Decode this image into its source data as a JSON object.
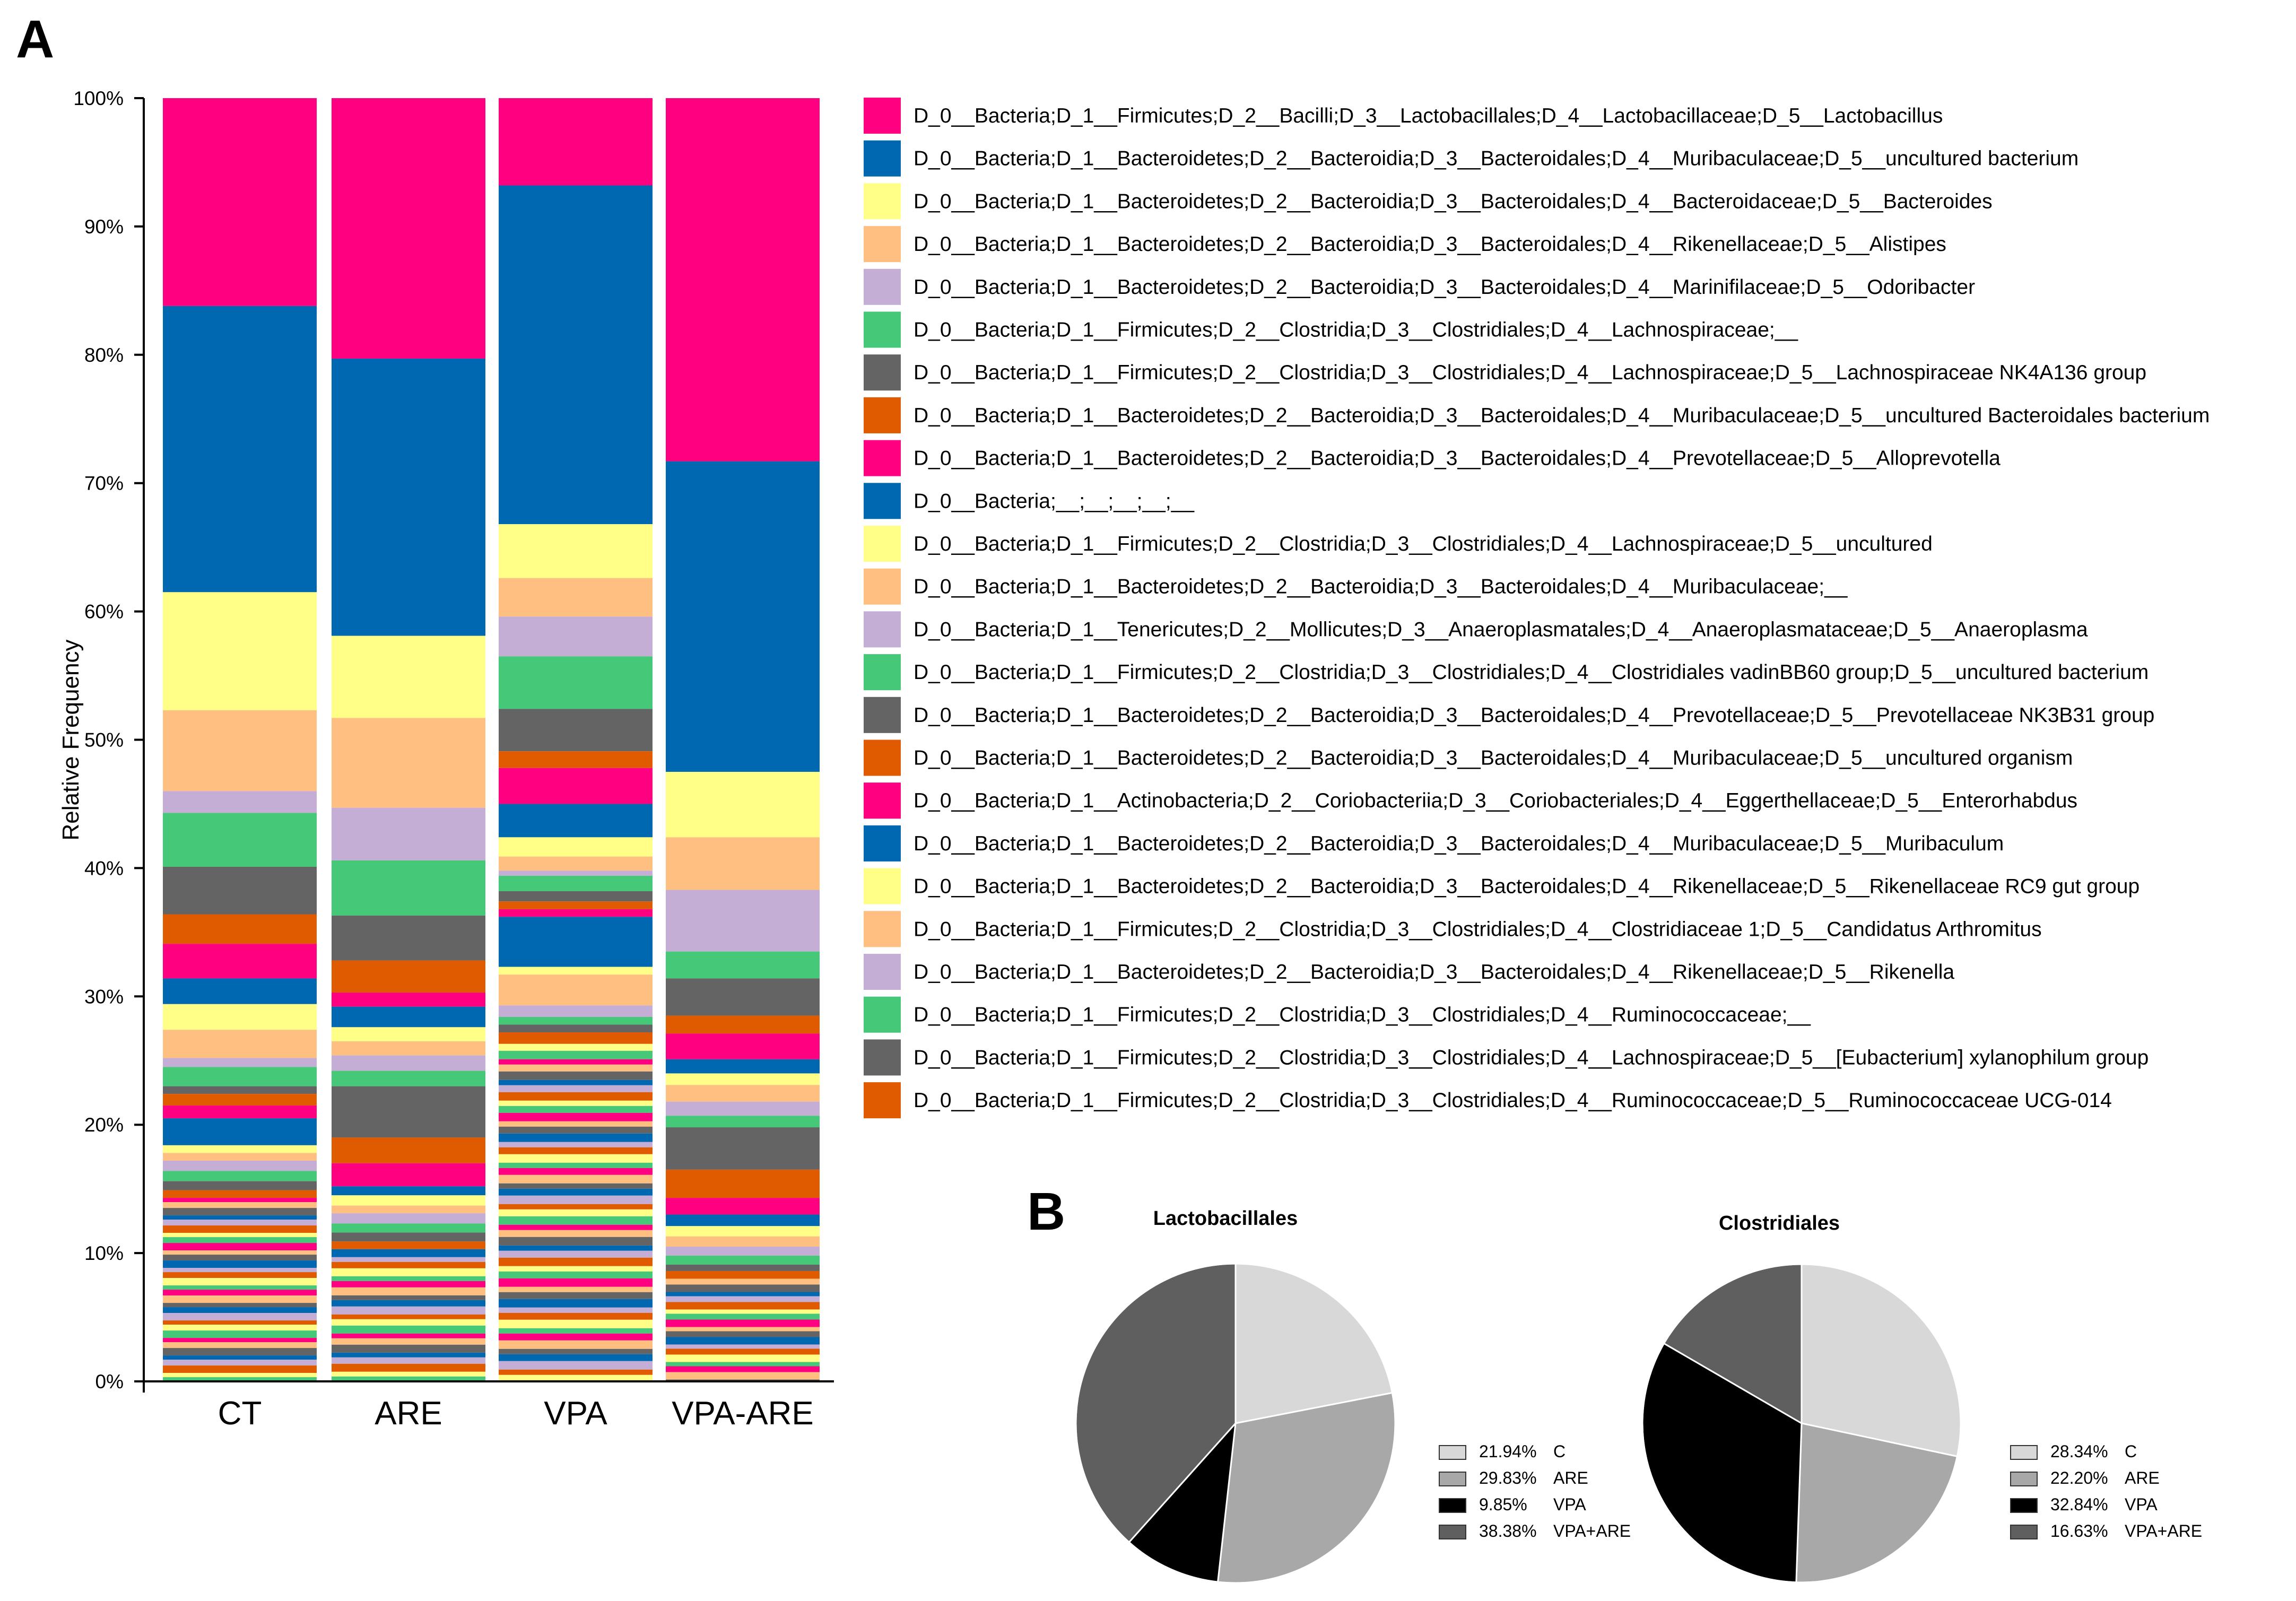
{
  "figure": {
    "panel_a_label": "A",
    "panel_b_label": "B"
  },
  "chart_data": [
    {
      "type": "stacked-bar",
      "ylabel": "Relative Frequency",
      "ylim": [
        0,
        100
      ],
      "ytick_labels": [
        "0%",
        "10%",
        "20%",
        "30%",
        "40%",
        "50%",
        "60%",
        "70%",
        "80%",
        "90%",
        "100%"
      ],
      "categories": [
        "CT",
        "ARE",
        "VPA",
        "VPA-ARE"
      ],
      "series": [
        {
          "name": "D_0__Bacteria;D_1__Firmicutes;D_2__Bacilli;D_3__Lactobacillales;D_4__Lactobacillaceae;D_5__Lactobacillus",
          "color": "#ff0080",
          "values": [
            16.2,
            20.3,
            6.8,
            28.3
          ]
        },
        {
          "name": "D_0__Bacteria;D_1__Bacteroidetes;D_2__Bacteroidia;D_3__Bacteroidales;D_4__Muribaculaceae;D_5__uncultured bacterium",
          "color": "#0068b0",
          "values": [
            22.3,
            21.6,
            26.4,
            24.2
          ]
        },
        {
          "name": "D_0__Bacteria;D_1__Bacteroidetes;D_2__Bacteroidia;D_3__Bacteroidales;D_4__Bacteroidaceae;D_5__Bacteroides",
          "color": "#ffff88",
          "values": [
            9.2,
            6.4,
            4.2,
            5.1
          ]
        },
        {
          "name": "D_0__Bacteria;D_1__Bacteroidetes;D_2__Bacteroidia;D_3__Bacteroidales;D_4__Rikenellaceae;D_5__Alistipes",
          "color": "#ffbf80",
          "values": [
            6.3,
            7.0,
            3.0,
            4.1
          ]
        },
        {
          "name": "D_0__Bacteria;D_1__Bacteroidetes;D_2__Bacteroidia;D_3__Bacteroidales;D_4__Marinifilaceae;D_5__Odoribacter",
          "color": "#c5aed6",
          "values": [
            1.7,
            4.1,
            3.1,
            4.8
          ]
        },
        {
          "name": "D_0__Bacteria;D_1__Firmicutes;D_2__Clostridia;D_3__Clostridiales;D_4__Lachnospiraceae;__",
          "color": "#45c878",
          "values": [
            4.2,
            4.3,
            4.1,
            2.1
          ]
        },
        {
          "name": "D_0__Bacteria;D_1__Firmicutes;D_2__Clostridia;D_3__Clostridiales;D_4__Lachnospiraceae;D_5__Lachnospiraceae NK4A136 group",
          "color": "#646464",
          "values": [
            3.7,
            3.5,
            3.3,
            2.9
          ]
        },
        {
          "name": "D_0__Bacteria;D_1__Bacteroidetes;D_2__Bacteroidia;D_3__Bacteroidales;D_4__Muribaculaceae;D_5__uncultured Bacteroidales bacterium",
          "color": "#e05a00",
          "values": [
            2.3,
            2.5,
            1.3,
            1.4
          ]
        },
        {
          "name": "D_0__Bacteria;D_1__Bacteroidetes;D_2__Bacteroidia;D_3__Bacteroidales;D_4__Prevotellaceae;D_5__Alloprevotella",
          "color": "#ff0080",
          "values": [
            2.7,
            1.1,
            2.8,
            2.0
          ]
        },
        {
          "name": "D_0__Bacteria;__;__;__;__;__",
          "color": "#0068b0",
          "values": [
            2.0,
            1.6,
            2.6,
            1.1
          ]
        },
        {
          "name": "D_0__Bacteria;D_1__Firmicutes;D_2__Clostridia;D_3__Clostridiales;D_4__Lachnospiraceae;D_5__uncultured",
          "color": "#ffff88",
          "values": [
            2.0,
            1.1,
            1.5,
            0.9
          ]
        },
        {
          "name": "D_0__Bacteria;D_1__Bacteroidetes;D_2__Bacteroidia;D_3__Bacteroidales;D_4__Muribaculaceae;__",
          "color": "#ffbf80",
          "values": [
            2.2,
            1.1,
            1.1,
            1.3
          ]
        },
        {
          "name": "D_0__Bacteria;D_1__Tenericutes;D_2__Mollicutes;D_3__Anaeroplasmatales;D_4__Anaeroplasmataceae;D_5__Anaeroplasma",
          "color": "#c5aed6",
          "values": [
            0.7,
            1.2,
            0.4,
            1.1
          ]
        },
        {
          "name": "D_0__Bacteria;D_1__Firmicutes;D_2__Clostridia;D_3__Clostridiales;D_4__Clostridiales vadinBB60 group;D_5__uncultured bacterium",
          "color": "#45c878",
          "values": [
            1.5,
            1.2,
            1.2,
            0.9
          ]
        },
        {
          "name": "D_0__Bacteria;D_1__Bacteroidetes;D_2__Bacteroidia;D_3__Bacteroidales;D_4__Prevotellaceae;D_5__Prevotellaceae NK3B31 group",
          "color": "#646464",
          "values": [
            0.6,
            4.0,
            0.8,
            3.3
          ]
        },
        {
          "name": "D_0__Bacteria;D_1__Bacteroidetes;D_2__Bacteroidia;D_3__Bacteroidales;D_4__Muribaculaceae;D_5__uncultured organism",
          "color": "#e05a00",
          "values": [
            0.9,
            2.0,
            0.6,
            2.2
          ]
        },
        {
          "name": "D_0__Bacteria;D_1__Actinobacteria;D_2__Coriobacteriia;D_3__Coriobacteriales;D_4__Eggerthellaceae;D_5__Enterorhabdus",
          "color": "#ff0080",
          "values": [
            1.0,
            1.8,
            0.6,
            1.3
          ]
        },
        {
          "name": "D_0__Bacteria;D_1__Bacteroidetes;D_2__Bacteroidia;D_3__Bacteroidales;D_4__Muribaculaceae;D_5__Muribaculum",
          "color": "#0068b0",
          "values": [
            2.1,
            0.7,
            3.9,
            0.9
          ]
        },
        {
          "name": "D_0__Bacteria;D_1__Bacteroidetes;D_2__Bacteroidia;D_3__Bacteroidales;D_4__Rikenellaceae;D_5__Rikenellaceae RC9 gut group",
          "color": "#ffff88",
          "values": [
            0.6,
            0.8,
            0.6,
            0.8
          ]
        },
        {
          "name": "D_0__Bacteria;D_1__Firmicutes;D_2__Clostridia;D_3__Clostridiales;D_4__Clostridiaceae 1;D_5__Candidatus Arthromitus",
          "color": "#ffbf80",
          "values": [
            0.6,
            0.6,
            2.4,
            0.8
          ]
        },
        {
          "name": "D_0__Bacteria;D_1__Bacteroidetes;D_2__Bacteroidia;D_3__Bacteroidales;D_4__Rikenellaceae;D_5__Rikenella",
          "color": "#c5aed6",
          "values": [
            0.8,
            0.8,
            0.9,
            0.7
          ]
        },
        {
          "name": "D_0__Bacteria;D_1__Firmicutes;D_2__Clostridia;D_3__Clostridiales;D_4__Ruminococcaceae;__",
          "color": "#45c878",
          "values": [
            0.8,
            0.7,
            0.6,
            0.7
          ]
        },
        {
          "name": "D_0__Bacteria;D_1__Firmicutes;D_2__Clostridia;D_3__Clostridiales;D_4__Lachnospiraceae;D_5__[Eubacterium] xylanophilum group",
          "color": "#646464",
          "values": [
            0.7,
            0.7,
            0.6,
            0.5
          ]
        },
        {
          "name": "D_0__Bacteria;D_1__Firmicutes;D_2__Clostridia;D_3__Clostridiales;D_4__Ruminococcaceae;D_5__Ruminococcaceae UCG-014",
          "color": "#e05a00",
          "values": [
            0.6,
            0.6,
            0.9,
            0.6
          ]
        }
      ]
    },
    {
      "type": "pie",
      "title": "Lactobacillales",
      "slices": [
        {
          "label": "C",
          "value_text": "21.94%",
          "value": 21.94,
          "color": "#d8d8d8"
        },
        {
          "label": "ARE",
          "value_text": "29.83%",
          "value": 29.83,
          "color": "#a8a8a8"
        },
        {
          "label": "VPA",
          "value_text": "9.85%",
          "value": 9.85,
          "color": "#000000"
        },
        {
          "label": "VPA+ARE",
          "value_text": "38.38%",
          "value": 38.38,
          "color": "#5f5f5f"
        }
      ]
    },
    {
      "type": "pie",
      "title": "Clostridiales",
      "slices": [
        {
          "label": "C",
          "value_text": "28.34%",
          "value": 28.34,
          "color": "#d8d8d8"
        },
        {
          "label": "ARE",
          "value_text": "22.20%",
          "value": 22.2,
          "color": "#a8a8a8"
        },
        {
          "label": "VPA",
          "value_text": "32.84%",
          "value": 32.84,
          "color": "#000000"
        },
        {
          "label": "VPA+ARE",
          "value_text": "16.63%",
          "value": 16.63,
          "color": "#5f5f5f"
        }
      ]
    }
  ],
  "minor_taxa_colors": [
    "#ff0080",
    "#0068b0",
    "#ffff88",
    "#ffbf80",
    "#c5aed6",
    "#45c878",
    "#646464",
    "#e05a00"
  ]
}
